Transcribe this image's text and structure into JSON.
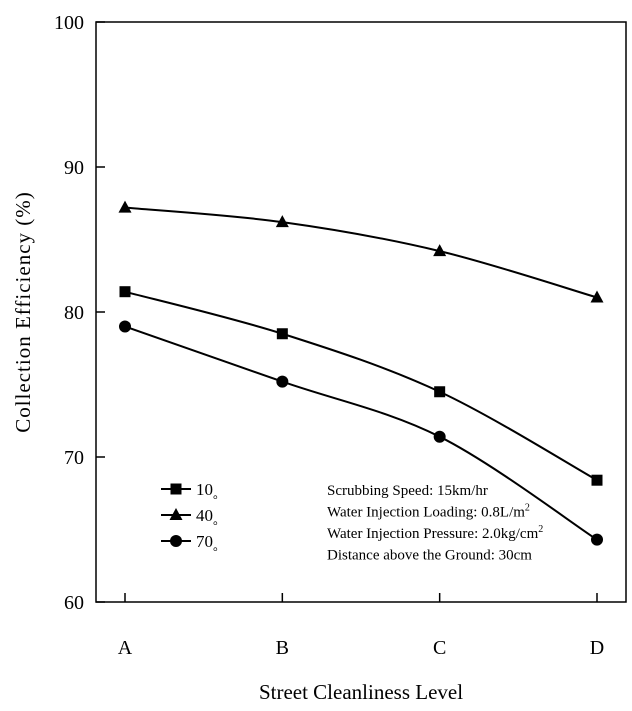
{
  "chart_data": {
    "type": "line",
    "title": "",
    "xlabel": "Street Cleanliness Level",
    "ylabel": "Collection Efficiency (%)",
    "categories": [
      "A",
      "B",
      "C",
      "D"
    ],
    "ylim": [
      60,
      100
    ],
    "yticks": [
      "60",
      "70",
      "80",
      "90",
      "100"
    ],
    "grid": false,
    "legend_position": "bottom-left",
    "series": [
      {
        "name": "10",
        "marker": "square",
        "values": [
          81.4,
          78.5,
          74.5,
          68.4
        ]
      },
      {
        "name": "40",
        "marker": "triangle",
        "values": [
          87.2,
          86.2,
          84.2,
          81.0
        ]
      },
      {
        "name": "70",
        "marker": "circle",
        "values": [
          79.0,
          75.2,
          71.4,
          64.3
        ]
      }
    ],
    "legend_suffix": "。",
    "annotations": [
      {
        "text": "Scrubbing Speed: 15km/hr"
      },
      {
        "text": "Water Injection Loading: 0.8L/m",
        "sup": "2"
      },
      {
        "text": "Water Injection Pressure: 2.0kg/cm",
        "sup": "2"
      },
      {
        "text": "Distance above the Ground: 30cm"
      }
    ]
  },
  "colors": {
    "line": "#000000",
    "background": "#ffffff"
  }
}
